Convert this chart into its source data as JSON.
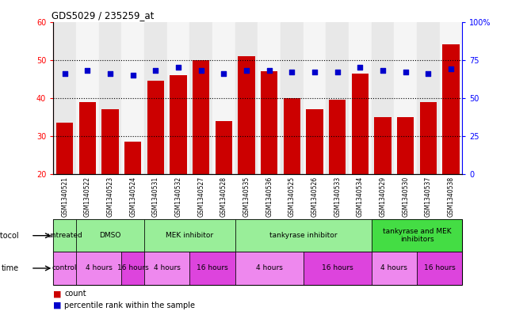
{
  "title": "GDS5029 / 235259_at",
  "samples": [
    "GSM1340521",
    "GSM1340522",
    "GSM1340523",
    "GSM1340524",
    "GSM1340531",
    "GSM1340532",
    "GSM1340527",
    "GSM1340528",
    "GSM1340535",
    "GSM1340536",
    "GSM1340525",
    "GSM1340526",
    "GSM1340533",
    "GSM1340534",
    "GSM1340529",
    "GSM1340530",
    "GSM1340537",
    "GSM1340538"
  ],
  "counts": [
    33.5,
    39.0,
    37.0,
    28.5,
    44.5,
    46.0,
    50.0,
    34.0,
    51.0,
    47.0,
    40.0,
    37.0,
    39.5,
    46.5,
    35.0,
    35.0,
    39.0,
    54.0
  ],
  "percentiles": [
    66,
    68,
    66,
    65,
    68,
    70,
    68,
    66,
    68,
    68,
    67,
    67,
    67,
    70,
    68,
    67,
    66,
    69
  ],
  "bar_color": "#cc0000",
  "dot_color": "#0000cc",
  "ylim_left": [
    20,
    60
  ],
  "ylim_right": [
    0,
    100
  ],
  "yticks_left": [
    20,
    30,
    40,
    50,
    60
  ],
  "yticks_right": [
    0,
    25,
    50,
    75,
    100
  ],
  "protocol_groups": [
    {
      "label": "untreated",
      "start": 0,
      "end": 1,
      "color": "#99ee99"
    },
    {
      "label": "DMSO",
      "start": 1,
      "end": 4,
      "color": "#99ee99"
    },
    {
      "label": "MEK inhibitor",
      "start": 4,
      "end": 8,
      "color": "#99ee99"
    },
    {
      "label": "tankyrase inhibitor",
      "start": 8,
      "end": 14,
      "color": "#99ee99"
    },
    {
      "label": "tankyrase and MEK\ninhibitors",
      "start": 14,
      "end": 18,
      "color": "#44dd44"
    }
  ],
  "time_groups": [
    {
      "label": "control",
      "start": 0,
      "end": 1,
      "color": "#ee88ee"
    },
    {
      "label": "4 hours",
      "start": 1,
      "end": 3,
      "color": "#ee88ee"
    },
    {
      "label": "16 hours",
      "start": 3,
      "end": 4,
      "color": "#dd44dd"
    },
    {
      "label": "4 hours",
      "start": 4,
      "end": 6,
      "color": "#ee88ee"
    },
    {
      "label": "16 hours",
      "start": 6,
      "end": 8,
      "color": "#dd44dd"
    },
    {
      "label": "4 hours",
      "start": 8,
      "end": 11,
      "color": "#ee88ee"
    },
    {
      "label": "16 hours",
      "start": 11,
      "end": 14,
      "color": "#dd44dd"
    },
    {
      "label": "4 hours",
      "start": 14,
      "end": 16,
      "color": "#ee88ee"
    },
    {
      "label": "16 hours",
      "start": 16,
      "end": 18,
      "color": "#dd44dd"
    }
  ],
  "bg_colors_even": "#e8e8e8",
  "bg_colors_odd": "#f5f5f5",
  "legend_bar_label": "count",
  "legend_dot_label": "percentile rank within the sample"
}
